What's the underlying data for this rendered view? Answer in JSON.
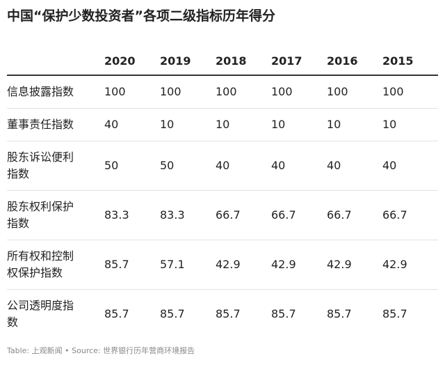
{
  "title": "中国“保护少数投资者”各项二级指标历年得分",
  "table": {
    "columns": [
      "2020",
      "2019",
      "2018",
      "2017",
      "2016",
      "2015"
    ],
    "rows": [
      {
        "label": "信息披露指数",
        "values": [
          100,
          100,
          100,
          100,
          100,
          100
        ]
      },
      {
        "label": "董事责任指数",
        "values": [
          40,
          10,
          10,
          10,
          10,
          10
        ]
      },
      {
        "label": "股东诉讼便利指数",
        "values": [
          50,
          50,
          40,
          40,
          40,
          40
        ]
      },
      {
        "label": "股东权利保护指数",
        "values": [
          83.3,
          83.3,
          66.7,
          66.7,
          66.7,
          66.7
        ]
      },
      {
        "label": "所有权和控制权保护指数",
        "values": [
          85.7,
          57.1,
          42.9,
          42.9,
          42.9,
          42.9
        ]
      },
      {
        "label": "公司透明度指数",
        "values": [
          85.7,
          85.7,
          85.7,
          85.7,
          85.7,
          85.7
        ]
      }
    ]
  },
  "footer": "Table: 上观新闻 • Source: 世界银行历年营商环境报告"
}
